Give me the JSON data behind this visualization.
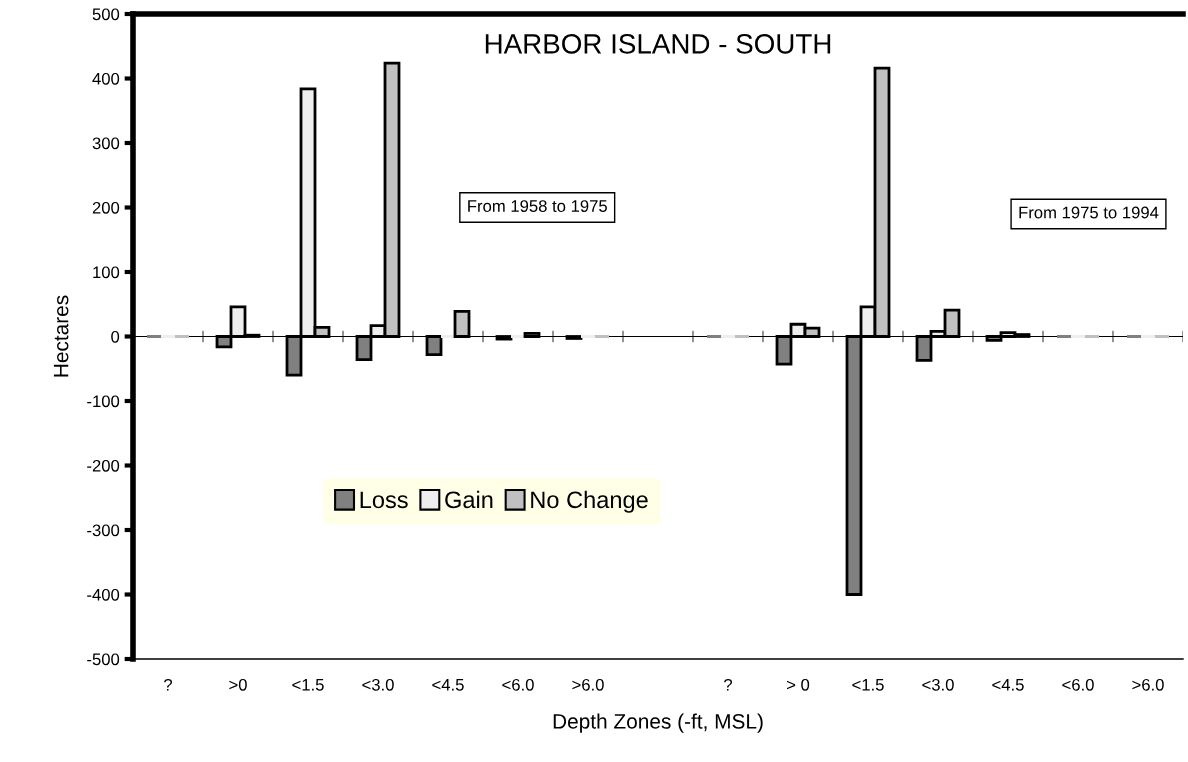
{
  "chart_data": {
    "type": "bar",
    "title": "HARBOR ISLAND - SOUTH",
    "xlabel": "Depth Zones (-ft, MSL)",
    "ylabel": "Hectares",
    "categories": [
      "?",
      ">0",
      "<1.5",
      "<3.0",
      "<4.5",
      "<6.0",
      ">6.0",
      null,
      "?",
      "> 0",
      "<1.5",
      "<3.0",
      "<4.5",
      "<6.0",
      ">6.0"
    ],
    "series": [
      {
        "name": "Loss",
        "color": "#808080",
        "values": [
          0,
          -16,
          -60,
          -36,
          -28,
          -4,
          -3,
          null,
          0,
          -43,
          -400,
          -37,
          -6,
          0,
          0
        ]
      },
      {
        "name": "Gain",
        "color": "#eeeeee",
        "values": [
          0,
          46,
          384,
          17,
          0,
          0,
          0,
          null,
          0,
          19,
          46,
          8,
          6,
          0,
          0
        ]
      },
      {
        "name": "No Change",
        "color": "#c0c0c0",
        "values": [
          0,
          2,
          14,
          424,
          39,
          5,
          0,
          null,
          0,
          13,
          416,
          41,
          3,
          0,
          0
        ]
      }
    ],
    "ylim": [
      -500,
      500
    ],
    "yticks": [
      -500,
      -400,
      -300,
      -200,
      -100,
      0,
      100,
      200,
      300,
      400,
      500
    ],
    "annotations": [
      {
        "text": "From 1958 to 1975"
      },
      {
        "text": "From 1975 to 1994"
      }
    ],
    "ref_lines": [
      {
        "axis": "y",
        "value": 0,
        "color": "#000000"
      }
    ],
    "legend": "bottom left",
    "grid": false
  }
}
